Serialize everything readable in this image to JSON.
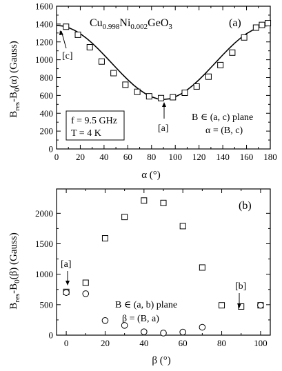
{
  "chart_data": [
    {
      "panel_label": "(a)",
      "type": "scatter",
      "title_main": "Cu",
      "title_sub1": "0.998",
      "title_mid": "Ni",
      "title_sub2": "0.002",
      "title_end": "GeO",
      "title_sub3": "3",
      "xlabel": "α (°)",
      "ylabel": {
        "a": "B",
        "s1": "res",
        "b": "-B",
        "s2": "0",
        "c": "(α)  (Gauss)"
      },
      "xlim": [
        0,
        180
      ],
      "ylim": [
        0,
        1600
      ],
      "xticks": [
        "0",
        "20",
        "40",
        "60",
        "80",
        "100",
        "120",
        "140",
        "160",
        "180"
      ],
      "yticks": [
        "0",
        "200",
        "400",
        "600",
        "800",
        "1000",
        "1200",
        "1400",
        "1600"
      ],
      "series": [
        {
          "marker": "square",
          "x": [
            8,
            18,
            28,
            38,
            48,
            58,
            68,
            78,
            88,
            98,
            108,
            118,
            128,
            138,
            148,
            158,
            168,
            173,
            178
          ],
          "y": [
            1370,
            1280,
            1140,
            980,
            850,
            720,
            640,
            590,
            570,
            580,
            630,
            700,
            810,
            940,
            1080,
            1250,
            1360,
            1390,
            1410
          ]
        }
      ],
      "fit_curve": {
        "x": [
          0,
          5,
          10,
          15,
          20,
          25,
          30,
          35,
          40,
          45,
          50,
          55,
          60,
          65,
          70,
          75,
          80,
          85,
          90,
          95,
          100,
          105,
          110,
          115,
          120,
          125,
          130,
          135,
          140,
          145,
          150,
          155,
          160,
          165,
          170,
          175,
          180
        ],
        "y": [
          1385,
          1378,
          1360,
          1331,
          1292,
          1243,
          1186,
          1122,
          1054,
          983,
          912,
          842,
          776,
          715,
          662,
          618,
          584,
          562,
          555,
          562,
          584,
          618,
          662,
          715,
          776,
          842,
          912,
          983,
          1054,
          1122,
          1186,
          1243,
          1292,
          1331,
          1360,
          1378,
          1385
        ]
      },
      "annotations": {
        "c_label": "[c]",
        "a_label": "[a]",
        "box_line1": "f = 9.5 GHz",
        "box_line2": "T = 4 K",
        "plane": "B ∈ (a, c) plane",
        "angle": "α = (B, c)"
      }
    },
    {
      "panel_label": "(b)",
      "type": "scatter",
      "xlabel": "β (°)",
      "ylabel": {
        "a": "B",
        "s1": "res",
        "b": "-B",
        "s2": "0",
        "c": "(β)  (Gauss)"
      },
      "xlim": [
        -5,
        105
      ],
      "ylim": [
        0,
        2400
      ],
      "xticks": [
        "0",
        "20",
        "40",
        "60",
        "80",
        "100"
      ],
      "yticks": [
        "0",
        "500",
        "1000",
        "1500",
        "2000"
      ],
      "series": [
        {
          "marker": "square",
          "x": [
            0,
            10,
            20,
            30,
            40,
            50,
            60,
            70,
            80,
            90,
            100
          ],
          "y": [
            710,
            860,
            1590,
            1940,
            2210,
            2170,
            1790,
            1110,
            490,
            470,
            490
          ]
        },
        {
          "marker": "circle",
          "x": [
            0,
            10,
            20,
            30,
            40,
            50,
            60,
            70,
            100
          ],
          "y": [
            700,
            680,
            240,
            160,
            55,
            35,
            50,
            130,
            490
          ]
        }
      ],
      "annotations": {
        "a_label": "[a]",
        "b_label": "[b]",
        "plane": "B ∈ (a, b) plane",
        "angle": "β = (B, a)"
      }
    }
  ]
}
